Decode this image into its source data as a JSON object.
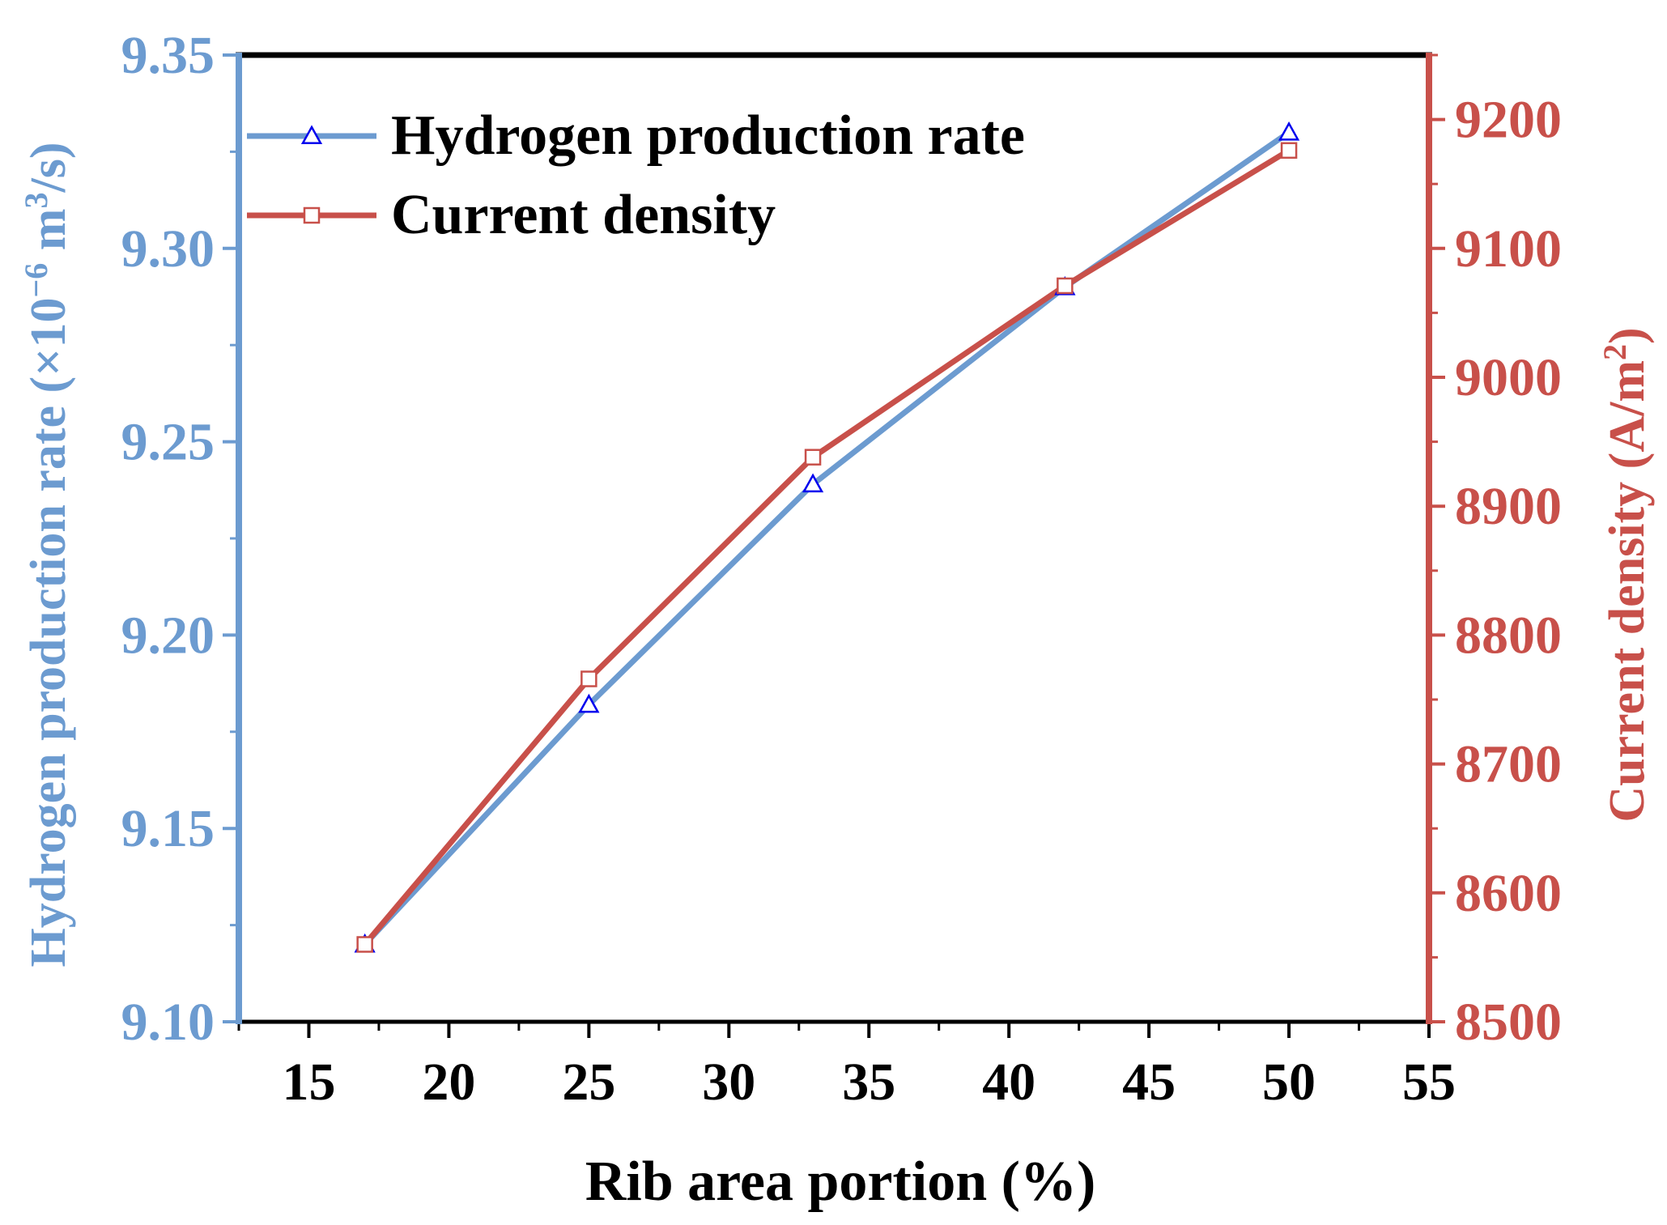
{
  "chart_data": {
    "type": "line",
    "title": "",
    "xlabel": "Rib area portion (%)",
    "ylabel_left": {
      "base": "Hydrogen production rate (×10",
      "exp": "−6",
      "mid": " m",
      "exp2": "3",
      "end": "/s)"
    },
    "ylabel_right": {
      "base": "Current density (A/m",
      "exp": "2",
      "end": ")"
    },
    "xlim": [
      12.5,
      55
    ],
    "ylim_left": [
      9.1,
      9.35
    ],
    "ylim_right": [
      8500,
      9250
    ],
    "x_ticks": [
      15,
      20,
      25,
      30,
      35,
      40,
      45,
      50,
      55
    ],
    "x_tick_labels": [
      "15",
      "20",
      "25",
      "30",
      "35",
      "40",
      "45",
      "50",
      "55"
    ],
    "y_left_ticks": [
      9.1,
      9.15,
      9.2,
      9.25,
      9.3,
      9.35
    ],
    "y_left_tick_labels": [
      "9.10",
      "9.15",
      "9.20",
      "9.25",
      "9.30",
      "9.35"
    ],
    "y_right_ticks": [
      8500,
      8600,
      8700,
      8800,
      8900,
      9000,
      9100,
      9200
    ],
    "y_right_tick_labels": [
      "8500",
      "8600",
      "8700",
      "8800",
      "8900",
      "9000",
      "9100",
      "9200"
    ],
    "x": [
      17,
      25,
      33,
      42,
      50
    ],
    "series": [
      {
        "name": "Hydrogen production rate",
        "axis": "left",
        "values": [
          9.12,
          9.182,
          9.239,
          9.29,
          9.33
        ],
        "line_color": "#6c9bd0",
        "marker": "triangle",
        "marker_color": "#0000ee"
      },
      {
        "name": "Current density",
        "axis": "right",
        "values": [
          8560,
          8766,
          8938,
          9071,
          9176
        ],
        "line_color": "#c8504a",
        "marker": "square",
        "marker_color": "#c8504a"
      }
    ],
    "legend_position": "top-left",
    "colors": {
      "left_axis": "#6c9bd0",
      "right_axis": "#c8504a",
      "frame": "#000000"
    }
  }
}
